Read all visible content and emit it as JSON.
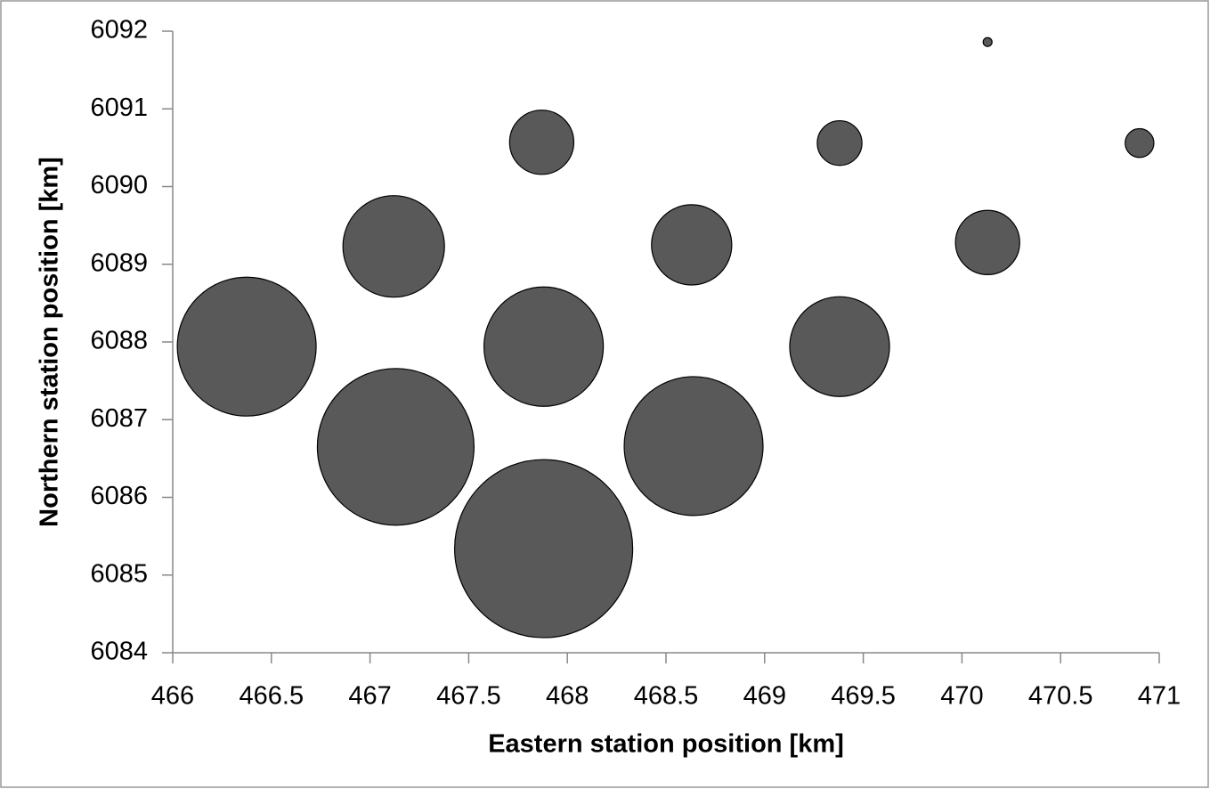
{
  "chart_data": {
    "type": "bubble",
    "x_label": "Eastern station position [km]",
    "y_label": "Northern station position [km]",
    "x": [
      466.375,
      467.13,
      467.88,
      467.12,
      467.88,
      468.64,
      467.87,
      468.63,
      469.38,
      469.38,
      470.13,
      470.9,
      470.13
    ],
    "y": [
      6087.94,
      6086.65,
      6085.34,
      6089.23,
      6087.94,
      6086.66,
      6090.57,
      6089.25,
      6087.94,
      6090.56,
      6089.28,
      6090.56,
      6091.86
    ],
    "sizes": [
      60.8,
      77.4,
      100,
      32.5,
      44.9,
      60.8,
      13,
      20.3,
      31.4,
      6.3,
      13,
      2.6,
      0.25
    ],
    "color": "#595959",
    "xlim": [
      466,
      471
    ],
    "xticks": [
      466,
      466.5,
      467,
      467.5,
      468,
      468.5,
      469,
      469.5,
      470,
      470.5,
      471
    ],
    "ylim": [
      6084,
      6092
    ],
    "yticks": [
      6084,
      6085,
      6086,
      6087,
      6088,
      6089,
      6090,
      6091,
      6092
    ]
  }
}
